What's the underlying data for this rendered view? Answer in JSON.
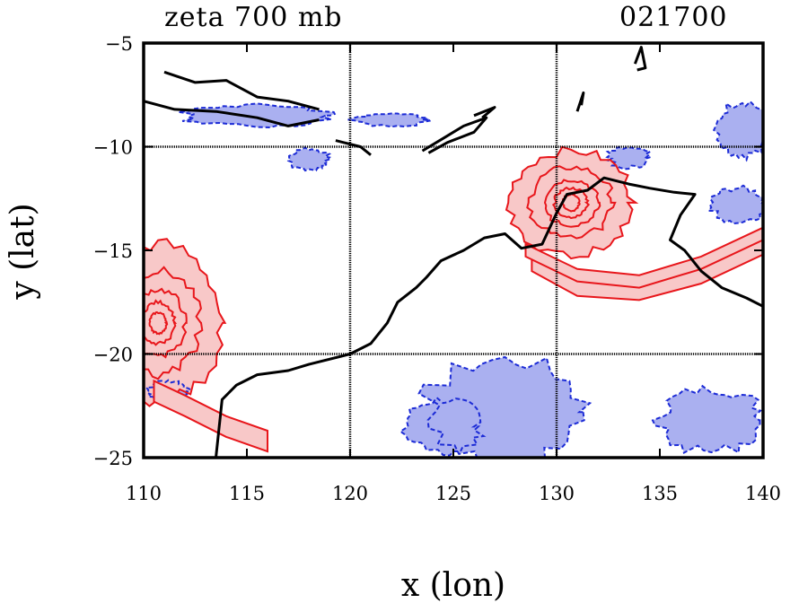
{
  "chart_data": {
    "type": "contour",
    "title": "zeta 700 mb",
    "timestamp": "021700",
    "xlabel": "x (lon)",
    "ylabel": "y (lat)",
    "xlim": [
      110,
      140
    ],
    "ylim": [
      -25,
      -5
    ],
    "xticks": [
      110,
      115,
      120,
      125,
      130,
      135,
      140
    ],
    "yticks": [
      -5,
      -10,
      -15,
      -20,
      -25
    ],
    "xtick_labels": [
      "110",
      "115",
      "120",
      "125",
      "130",
      "135",
      "140"
    ],
    "ytick_labels": [
      "−5",
      "−10",
      "−15",
      "−20",
      "−25"
    ],
    "gridlines_x": [
      120,
      130
    ],
    "gridlines_y": [
      -10,
      -20
    ],
    "colors": {
      "positive_line": "#e8161b",
      "positive_fill": "#f8c8c8",
      "negative_line": "#1c2bd6",
      "negative_fill": "#aab0f0",
      "coast": "#000000"
    },
    "coastline": [
      [
        [
          113.5,
          -25
        ],
        [
          113.8,
          -22.2
        ],
        [
          114.5,
          -21.5
        ],
        [
          115.5,
          -21.0
        ],
        [
          117,
          -20.8
        ],
        [
          118,
          -20.5
        ],
        [
          120,
          -20
        ],
        [
          121,
          -19.5
        ],
        [
          121.8,
          -18.5
        ],
        [
          122.3,
          -17.5
        ],
        [
          123.2,
          -16.8
        ],
        [
          123.7,
          -16.3
        ],
        [
          124.4,
          -15.5
        ],
        [
          125.5,
          -15.0
        ],
        [
          126.5,
          -14.4
        ],
        [
          127.5,
          -14.2
        ],
        [
          128.3,
          -14.9
        ],
        [
          129.3,
          -14.7
        ],
        [
          130.0,
          -13.2
        ],
        [
          130.5,
          -12.3
        ],
        [
          131.5,
          -12.1
        ],
        [
          132.3,
          -11.5
        ],
        [
          133.5,
          -11.8
        ],
        [
          134.5,
          -12.0
        ],
        [
          135.7,
          -12.2
        ],
        [
          136.7,
          -12.3
        ],
        [
          136.0,
          -13.3
        ],
        [
          135.5,
          -14.5
        ],
        [
          136.2,
          -15.0
        ],
        [
          137.0,
          -16.0
        ],
        [
          138.0,
          -16.8
        ],
        [
          139.2,
          -17.3
        ],
        [
          140,
          -17.7
        ]
      ],
      [
        [
          111,
          -6.4
        ],
        [
          112.5,
          -6.9
        ],
        [
          114,
          -6.8
        ],
        [
          115.5,
          -7.6
        ],
        [
          117,
          -7.8
        ],
        [
          118.5,
          -8.2
        ]
      ],
      [
        [
          110,
          -7.8
        ],
        [
          111.5,
          -8.2
        ],
        [
          113.5,
          -8.3
        ],
        [
          115.5,
          -8.6
        ],
        [
          117.0,
          -9.0
        ],
        [
          118.5,
          -8.7
        ]
      ],
      [
        [
          119.3,
          -9.7
        ],
        [
          120.5,
          -10.0
        ],
        [
          121.0,
          -10.4
        ]
      ],
      [
        [
          123.5,
          -10.2
        ],
        [
          124.5,
          -9.6
        ],
        [
          125.5,
          -9.0
        ],
        [
          126.6,
          -8.6
        ],
        [
          126.0,
          -9.3
        ],
        [
          124.7,
          -9.8
        ],
        [
          123.8,
          -10.3
        ]
      ],
      [
        [
          126.0,
          -8.5
        ],
        [
          127.0,
          -8.1
        ],
        [
          126.4,
          -8.6
        ]
      ],
      [
        [
          133.8,
          -6.0
        ],
        [
          134.1,
          -5.2
        ],
        [
          134.3,
          -6.2
        ],
        [
          133.9,
          -6.3
        ]
      ],
      [
        [
          131.0,
          -8.3
        ],
        [
          131.3,
          -7.4
        ],
        [
          131.2,
          -8.0
        ]
      ]
    ],
    "positive_contours": [
      {
        "center": [
          130.7,
          -12.7
        ],
        "rx": [
          0.4,
          0.8,
          1.3,
          2.0,
          3.0
        ],
        "ry": [
          0.4,
          0.7,
          1.1,
          1.7,
          2.5
        ]
      },
      {
        "center": [
          110.7,
          -18.5
        ],
        "rx": [
          0.4,
          0.8,
          1.3,
          2.0,
          3.0
        ],
        "ry": [
          0.5,
          1.0,
          1.6,
          2.5,
          3.8
        ]
      }
    ],
    "vortex_bands": [
      {
        "type": "band",
        "path": [
          [
            128.8,
            -15.6
          ],
          [
            131,
            -16.8
          ],
          [
            134,
            -17.0
          ],
          [
            137,
            -16.2
          ],
          [
            140,
            -14.8
          ]
        ],
        "width": 0.4
      },
      {
        "type": "band",
        "path": [
          [
            128.5,
            -15.0
          ],
          [
            131,
            -16.2
          ],
          [
            134,
            -16.5
          ],
          [
            137,
            -15.6
          ],
          [
            140,
            -14.2
          ]
        ],
        "width": 0.3
      },
      {
        "type": "band",
        "path": [
          [
            116,
            -24.2
          ],
          [
            114,
            -23.5
          ],
          [
            112,
            -22.5
          ],
          [
            110.5,
            -21.8
          ]
        ],
        "width": 0.5
      }
    ],
    "negative_regions": [
      {
        "center": [
          127.5,
          -22.8
        ],
        "rx": 3.8,
        "ry": 2.5
      },
      {
        "center": [
          124.5,
          -23.5
        ],
        "rx": 1.8,
        "ry": 1.3
      },
      {
        "center": [
          137.5,
          -23.2
        ],
        "rx": 2.5,
        "ry": 1.5
      },
      {
        "center": [
          139.0,
          -9.2
        ],
        "rx": 1.2,
        "ry": 1.4
      },
      {
        "center": [
          138.8,
          -12.8
        ],
        "rx": 1.3,
        "ry": 0.8
      },
      {
        "center": [
          118.0,
          -10.6
        ],
        "rx": 1.0,
        "ry": 0.5
      },
      {
        "center": [
          115.5,
          -8.5
        ],
        "rx": 3.5,
        "ry": 0.5
      },
      {
        "center": [
          122.0,
          -8.7
        ],
        "rx": 1.8,
        "ry": 0.3
      },
      {
        "center": [
          133.5,
          -10.5
        ],
        "rx": 1.0,
        "ry": 0.5
      },
      {
        "center": [
          111.2,
          -21.8
        ],
        "rx": 1.0,
        "ry": 0.5
      }
    ]
  }
}
